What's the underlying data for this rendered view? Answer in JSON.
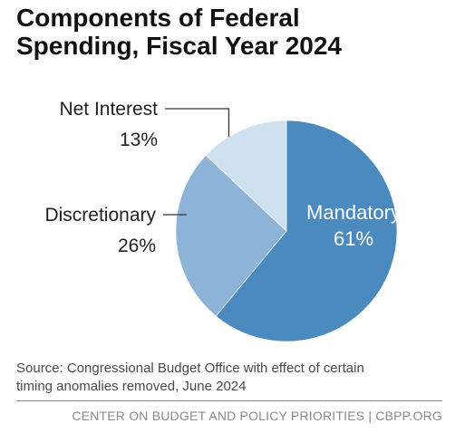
{
  "chart_data": {
    "type": "pie",
    "title": [
      "Components of Federal",
      "Spending, Fiscal Year 2024"
    ],
    "slices": [
      {
        "label": "Mandatory",
        "value": 61,
        "display": "61%",
        "color": "#4a8abf",
        "label_inside": true
      },
      {
        "label": "Discretionary",
        "value": 26,
        "display": "26%",
        "color": "#8db3d7",
        "label_inside": false
      },
      {
        "label": "Net Interest",
        "value": 13,
        "display": "13%",
        "color": "#cfe0ef",
        "label_inside": false
      }
    ]
  },
  "source": [
    "Source: Congressional Budget Office with effect of certain",
    "timing anomalies removed, June 2024"
  ],
  "footer": "CENTER ON BUDGET AND POLICY PRIORITIES | CBPP.ORG"
}
